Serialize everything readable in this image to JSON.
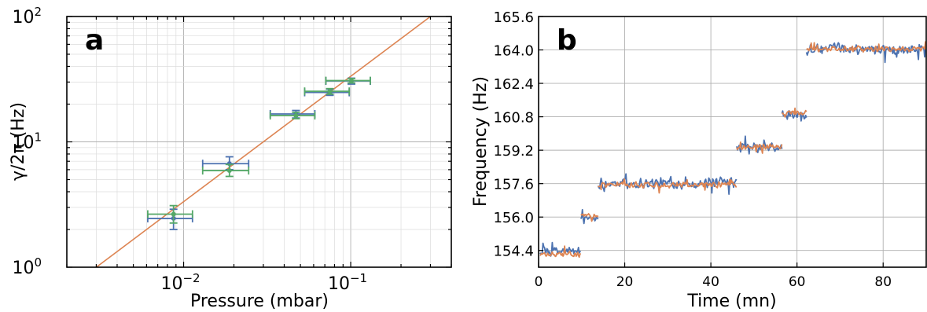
{
  "chart_data": [
    {
      "type": "scatter",
      "panel_label": "a",
      "xlabel": "Pressure (mbar)",
      "ylabel": "γ/2π (Hz)",
      "xscale": "log",
      "yscale": "log",
      "xlim": [
        0.002,
        0.4
      ],
      "ylim": [
        1,
        100
      ],
      "x_tick_labels": [
        {
          "value": 0.01,
          "base": "10",
          "exp": "−2"
        },
        {
          "value": 0.1,
          "base": "10",
          "exp": "−1"
        }
      ],
      "y_tick_labels": [
        {
          "value": 1,
          "base": "10",
          "exp": "0"
        },
        {
          "value": 10,
          "base": "10",
          "exp": "1"
        },
        {
          "value": 100,
          "base": "10",
          "exp": "2"
        }
      ],
      "grid": true,
      "fit_line": {
        "color": "#dd8452",
        "x": [
          0.003,
          0.3
        ],
        "y": [
          1.0,
          100.0
        ]
      },
      "series": [
        {
          "color": "#4c72b0",
          "points": [
            {
              "x": 0.0087,
              "y": 2.45,
              "xerr": [
                0.0061,
                0.0113
              ],
              "yerr": [
                2.0,
                2.9
              ]
            },
            {
              "x": 0.0188,
              "y": 6.7,
              "xerr": [
                0.013,
                0.0245
              ],
              "yerr": [
                6.0,
                7.6
              ]
            },
            {
              "x": 0.047,
              "y": 16.7,
              "xerr": [
                0.033,
                0.061
              ],
              "yerr": [
                15.5,
                17.8
              ]
            },
            {
              "x": 0.075,
              "y": 24.8,
              "xerr": [
                0.053,
                0.098
              ],
              "yerr": [
                23.5,
                26.3
              ]
            },
            {
              "x": 0.101,
              "y": 30.6,
              "xerr": [
                0.071,
                0.131
              ],
              "yerr": [
                28.9,
                32.2
              ]
            }
          ]
        },
        {
          "color": "#55a868",
          "points": [
            {
              "x": 0.0087,
              "y": 2.65,
              "xerr": [
                0.0061,
                0.0113
              ],
              "yerr": [
                2.25,
                3.1
              ]
            },
            {
              "x": 0.0188,
              "y": 5.9,
              "xerr": [
                0.013,
                0.0245
              ],
              "yerr": [
                5.3,
                6.6
              ]
            },
            {
              "x": 0.047,
              "y": 16.2,
              "xerr": [
                0.033,
                0.061
              ],
              "yerr": [
                15.3,
                17.2
              ]
            },
            {
              "x": 0.075,
              "y": 25.3,
              "xerr": [
                0.053,
                0.098
              ],
              "yerr": [
                24.0,
                26.6
              ]
            },
            {
              "x": 0.101,
              "y": 30.8,
              "xerr": [
                0.071,
                0.131
              ],
              "yerr": [
                29.5,
                32.0
              ]
            }
          ]
        }
      ]
    },
    {
      "type": "line",
      "panel_label": "b",
      "xlabel": "Time (mn)",
      "ylabel": "Frequency (Hz)",
      "xlim": [
        0,
        90
      ],
      "ylim": [
        153.6,
        165.6
      ],
      "x_ticks": [
        "0",
        "20",
        "40",
        "60",
        "80"
      ],
      "y_ticks": [
        "154.4",
        "156.0",
        "157.6",
        "159.2",
        "160.8",
        "162.4",
        "164.0",
        "165.6"
      ],
      "grid": true,
      "series": [
        {
          "color": "#4c72b0",
          "noise_amplitude": 0.3,
          "segments": [
            {
              "x": [
                0.3,
                9.8
              ],
              "y": 154.35
            },
            {
              "x": [
                9.8,
                13.8
              ],
              "y": 155.95
            },
            {
              "x": [
                13.8,
                46.0
              ],
              "y": 157.62
            },
            {
              "x": [
                46.0,
                56.5
              ],
              "y": 159.3
            },
            {
              "x": [
                56.5,
                62.2
              ],
              "y": 160.85
            },
            {
              "x": [
                62.2,
                90.0
              ],
              "y": 164.05
            }
          ]
        },
        {
          "color": "#dd8452",
          "noise_amplitude": 0.16,
          "segments": [
            {
              "x": [
                0.3,
                9.8
              ],
              "y": 154.2
            },
            {
              "x": [
                9.8,
                13.8
              ],
              "y": 156.05
            },
            {
              "x": [
                13.8,
                46.0
              ],
              "y": 157.55
            },
            {
              "x": [
                46.0,
                56.5
              ],
              "y": 159.35
            },
            {
              "x": [
                56.5,
                62.2
              ],
              "y": 160.95
            },
            {
              "x": [
                62.2,
                90.0
              ],
              "y": 164.05
            }
          ]
        }
      ]
    }
  ]
}
